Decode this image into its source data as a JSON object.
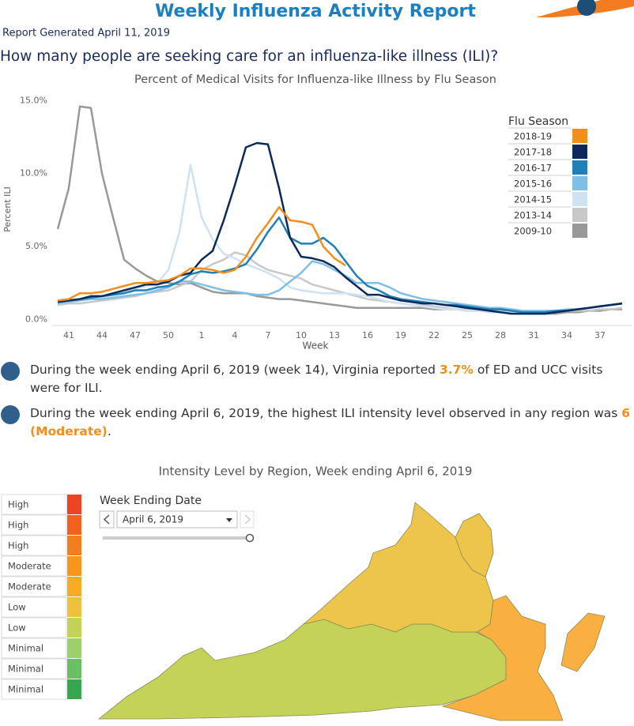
{
  "header": {
    "title": "Weekly Influenza Activity Report",
    "generated": "Report Generated April 11, 2019"
  },
  "question": "How many people are seeking care for an influenza-like illness (ILI)?",
  "chart_data": {
    "type": "line",
    "title": "Percent of Medical Visits for Influenza-like Illness by Flu Season",
    "x_label": "Week",
    "y_label": "Percent ILI",
    "categories": [
      null,
      41,
      null,
      null,
      44,
      null,
      null,
      47,
      null,
      null,
      50,
      null,
      null,
      1,
      null,
      null,
      4,
      null,
      null,
      7,
      null,
      null,
      10,
      null,
      null,
      13,
      null,
      null,
      16,
      null,
      null,
      19,
      null,
      null,
      22,
      null,
      null,
      25,
      null,
      null,
      28,
      null,
      null,
      31,
      null,
      null,
      34,
      null,
      null,
      37,
      null,
      null
    ],
    "ylim": [
      -0.3,
      15.4
    ],
    "yticks": [
      {
        "value": 0,
        "label": "0.0%"
      },
      {
        "value": 5,
        "label": "5.0%"
      },
      {
        "value": 10,
        "label": "10.0%"
      },
      {
        "value": 15,
        "label": "15.0%"
      }
    ],
    "grid": false,
    "legend_title": "Flu Season",
    "legend_position": "upper right",
    "series": [
      {
        "name": "2018-19",
        "color": "#f28e1c",
        "values": [
          1.3,
          1.4,
          1.8,
          1.8,
          1.9,
          2.1,
          2.3,
          2.5,
          2.5,
          2.6,
          2.7,
          3.0,
          3.5,
          3.5,
          3.4,
          3.2,
          3.4,
          4.3,
          5.6,
          6.6,
          7.7,
          6.8,
          6.7,
          6.5,
          5.0,
          4.2,
          3.7,
          null,
          null,
          null,
          null,
          null,
          null,
          null,
          null,
          null,
          null,
          null,
          null,
          null,
          null,
          null,
          null,
          null,
          null,
          null,
          null,
          null,
          null,
          null,
          null,
          null
        ]
      },
      {
        "name": "2017-18",
        "color": "#0b2a5b",
        "values": [
          1.2,
          1.3,
          1.4,
          1.6,
          1.6,
          1.8,
          2.0,
          2.2,
          2.4,
          2.4,
          2.6,
          3.0,
          3.2,
          4.1,
          4.7,
          6.8,
          9.2,
          11.8,
          12.1,
          12.0,
          9.0,
          5.6,
          4.3,
          4.2,
          4.0,
          3.6,
          2.9,
          2.3,
          1.7,
          1.7,
          1.5,
          1.3,
          1.2,
          1.1,
          1.1,
          1.0,
          0.9,
          0.8,
          0.7,
          0.6,
          0.5,
          0.4,
          0.4,
          0.4,
          0.4,
          0.5,
          0.6,
          0.7,
          0.8,
          0.9,
          1.0,
          1.1
        ]
      },
      {
        "name": "2016-17",
        "color": "#1f7fb8",
        "values": [
          1.2,
          1.3,
          1.4,
          1.5,
          1.6,
          1.7,
          1.8,
          2.0,
          2.0,
          2.2,
          2.3,
          2.6,
          3.1,
          3.3,
          3.2,
          3.3,
          3.5,
          3.8,
          4.8,
          6.0,
          7.0,
          5.6,
          5.2,
          5.2,
          5.6,
          5.0,
          4.0,
          3.0,
          2.3,
          2.0,
          1.6,
          1.4,
          1.3,
          1.2,
          1.1,
          1.0,
          1.0,
          0.9,
          0.8,
          0.7,
          0.7,
          0.6,
          0.5,
          0.5,
          0.5,
          0.6,
          0.6,
          0.7,
          0.8,
          0.9,
          1.0,
          1.1
        ]
      },
      {
        "name": "2015-16",
        "color": "#7fbfe6",
        "values": [
          1.1,
          1.2,
          1.3,
          1.4,
          1.4,
          1.5,
          1.6,
          1.7,
          1.8,
          2.0,
          2.2,
          2.6,
          2.6,
          2.4,
          2.2,
          2.0,
          1.9,
          1.8,
          1.7,
          1.7,
          2.0,
          2.6,
          3.2,
          4.0,
          3.8,
          3.4,
          3.0,
          2.5,
          2.5,
          2.5,
          2.2,
          1.8,
          1.6,
          1.4,
          1.3,
          1.2,
          1.1,
          1.0,
          0.9,
          0.8,
          0.8,
          0.7,
          0.6,
          0.6,
          0.6,
          0.6,
          0.7,
          0.7,
          0.8,
          0.9,
          1.0,
          1.1
        ]
      },
      {
        "name": "2014-15",
        "color": "#cfe2f3",
        "values": [
          1.2,
          1.3,
          1.4,
          1.4,
          1.5,
          1.7,
          1.9,
          2.1,
          2.3,
          2.5,
          3.4,
          6.0,
          10.6,
          7.0,
          5.5,
          4.5,
          4.2,
          3.8,
          3.5,
          3.2,
          2.8,
          2.2,
          2.0,
          1.9,
          1.8,
          1.8,
          1.8,
          1.7,
          1.6,
          1.4,
          1.2,
          1.1,
          1.0,
          0.9,
          0.8,
          0.7,
          0.7,
          0.6,
          0.6,
          0.5,
          0.5,
          0.5,
          0.5,
          0.5,
          0.5,
          0.6,
          0.6,
          0.7,
          0.8,
          0.9,
          1.0,
          1.1
        ]
      },
      {
        "name": "2013-14",
        "color": "#c8c8c8",
        "values": [
          1.0,
          1.1,
          1.1,
          1.2,
          1.3,
          1.4,
          1.5,
          1.6,
          1.8,
          1.9,
          2.0,
          2.3,
          2.6,
          3.4,
          3.8,
          4.1,
          4.6,
          4.4,
          3.8,
          3.4,
          3.2,
          3.0,
          2.8,
          2.4,
          2.2,
          2.0,
          1.8,
          1.6,
          1.4,
          1.3,
          1.2,
          1.1,
          1.0,
          1.0,
          0.9,
          0.8,
          0.7,
          0.7,
          0.6,
          0.6,
          0.6,
          0.5,
          0.5,
          0.5,
          0.5,
          0.5,
          0.6,
          0.6,
          0.6,
          0.7,
          0.7,
          0.8
        ]
      },
      {
        "name": "2009-10",
        "color": "#999999",
        "values": [
          6.2,
          9.0,
          14.6,
          14.5,
          10.0,
          7.0,
          4.1,
          3.5,
          3.0,
          2.6,
          2.5,
          2.4,
          2.5,
          2.2,
          1.9,
          1.8,
          1.8,
          1.8,
          1.6,
          1.5,
          1.4,
          1.4,
          1.3,
          1.2,
          1.1,
          1.0,
          0.9,
          0.8,
          0.8,
          0.8,
          0.8,
          0.8,
          0.8,
          0.8,
          0.7,
          0.7,
          0.7,
          0.6,
          0.6,
          0.6,
          0.5,
          0.5,
          0.5,
          0.5,
          0.4,
          0.4,
          0.5,
          0.5,
          0.6,
          0.6,
          0.7,
          0.7
        ]
      }
    ]
  },
  "bullets": [
    {
      "before": "During the week ending April 6, 2019 (week 14), Virginia reported ",
      "highlight": "3.7%",
      "after": " of ED and UCC visits were for ILI."
    },
    {
      "before": "During the week ending April 6, 2019, the highest ILI intensity level observed in any region was ",
      "highlight": "6 (Moderate)",
      "after": "."
    }
  ],
  "map": {
    "title": "Intensity Level by Region, Week ending April 6, 2019",
    "legend": [
      {
        "label": "High",
        "color": "#ee4423"
      },
      {
        "label": "High",
        "color": "#f3611f"
      },
      {
        "label": "High",
        "color": "#f47d20"
      },
      {
        "label": "Moderate",
        "color": "#f7951d"
      },
      {
        "label": "Moderate",
        "color": "#f9ab24"
      },
      {
        "label": "Low",
        "color": "#eec03e"
      },
      {
        "label": "Low",
        "color": "#c4d258"
      },
      {
        "label": "Minimal",
        "color": "#9dcf6c"
      },
      {
        "label": "Minimal",
        "color": "#68bf64"
      },
      {
        "label": "Minimal",
        "color": "#36a74e"
      }
    ],
    "filter": {
      "label": "Week Ending Date",
      "value": "April 6, 2019"
    }
  }
}
